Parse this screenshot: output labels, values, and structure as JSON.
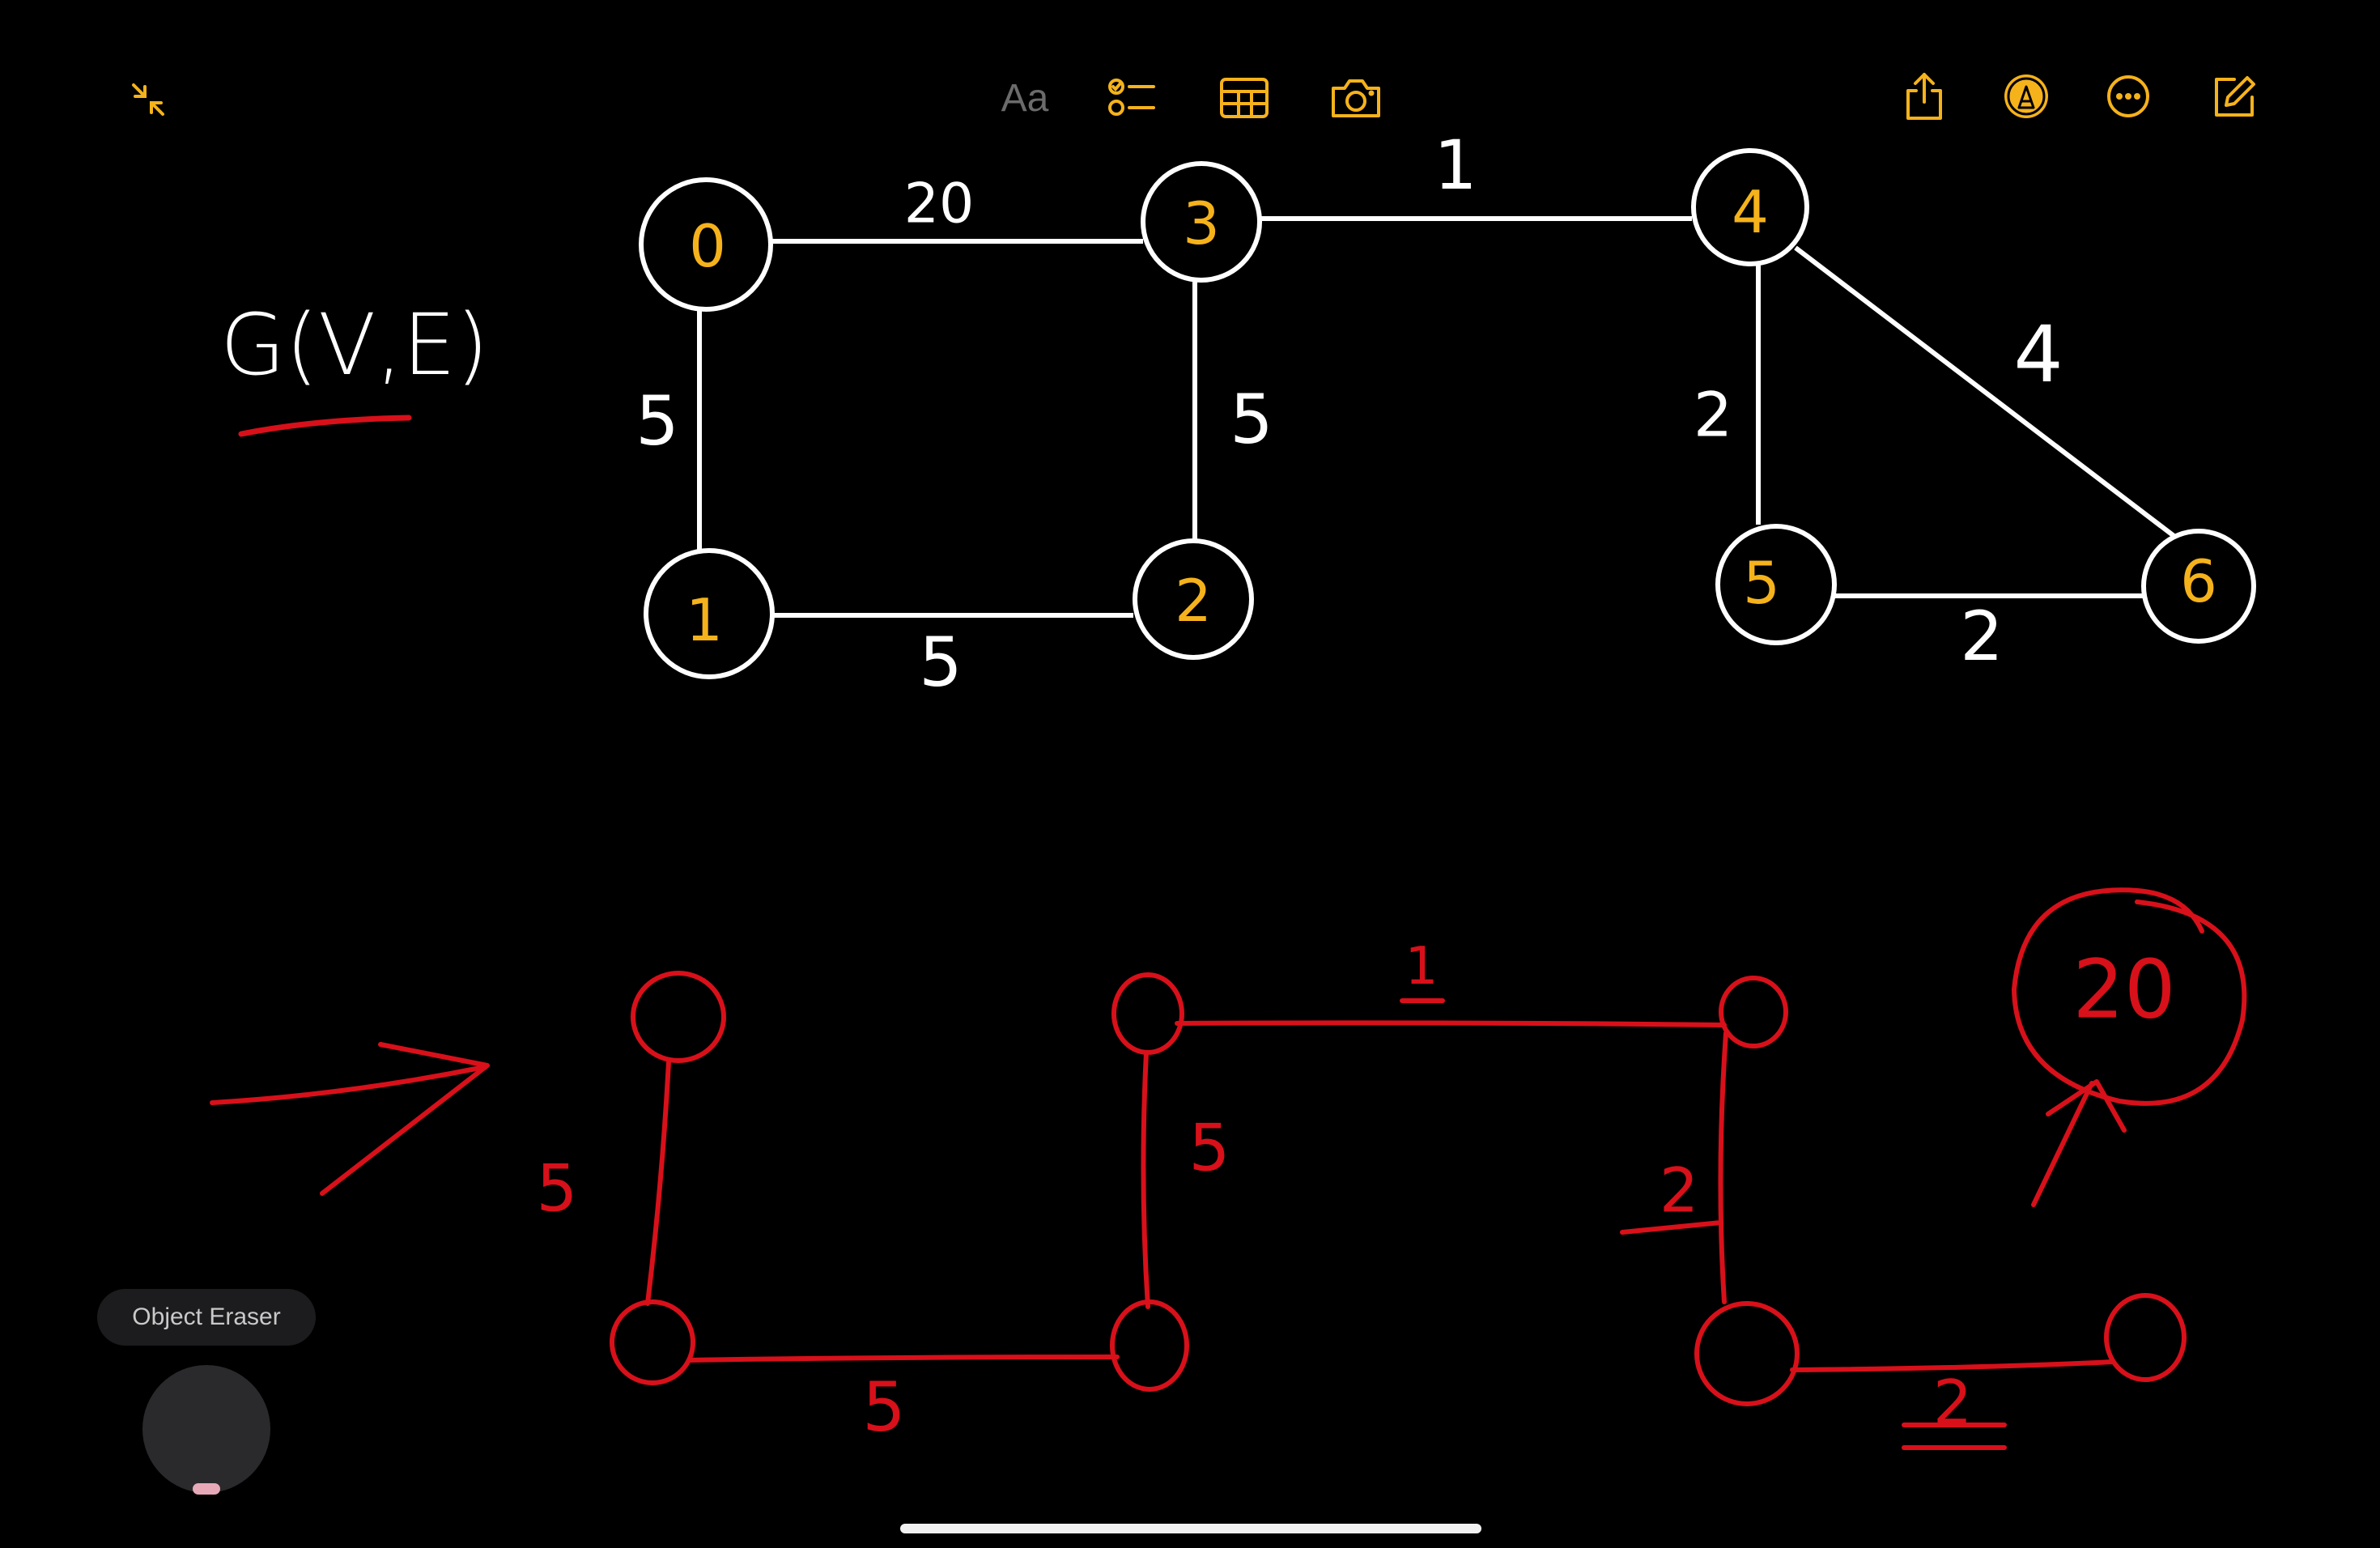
{
  "toolbar": {
    "text_format_label": "Aa",
    "accent_color": "#f5b21b",
    "muted_color": "#6b6b6b",
    "icons": [
      "collapse-icon",
      "text-format-icon",
      "checklist-icon",
      "table-icon",
      "camera-icon",
      "share-icon",
      "markup-icon",
      "more-icon",
      "compose-icon"
    ]
  },
  "graph_title": "G(V,E)",
  "graph": {
    "node_labels": [
      "0",
      "1",
      "2",
      "3",
      "4",
      "5",
      "6"
    ],
    "edge_weights": {
      "e0_3": "20",
      "e0_1": "5",
      "e1_2": "5",
      "e2_3": "5",
      "e3_4": "1",
      "e4_5": "2",
      "e4_6": "4",
      "e5_6": "2"
    },
    "node_label_color": "#f5b21b",
    "stroke_color": "#ffffff"
  },
  "mst_sketch": {
    "weights": {
      "w0_1": "5",
      "w1_2": "5",
      "w2_3": "5",
      "w3_4": "1",
      "w4_5": "2",
      "w5_6": "2"
    },
    "excluded_weight": "20",
    "ink_color": "#d8101a"
  },
  "tool": {
    "label": "Object Eraser"
  }
}
